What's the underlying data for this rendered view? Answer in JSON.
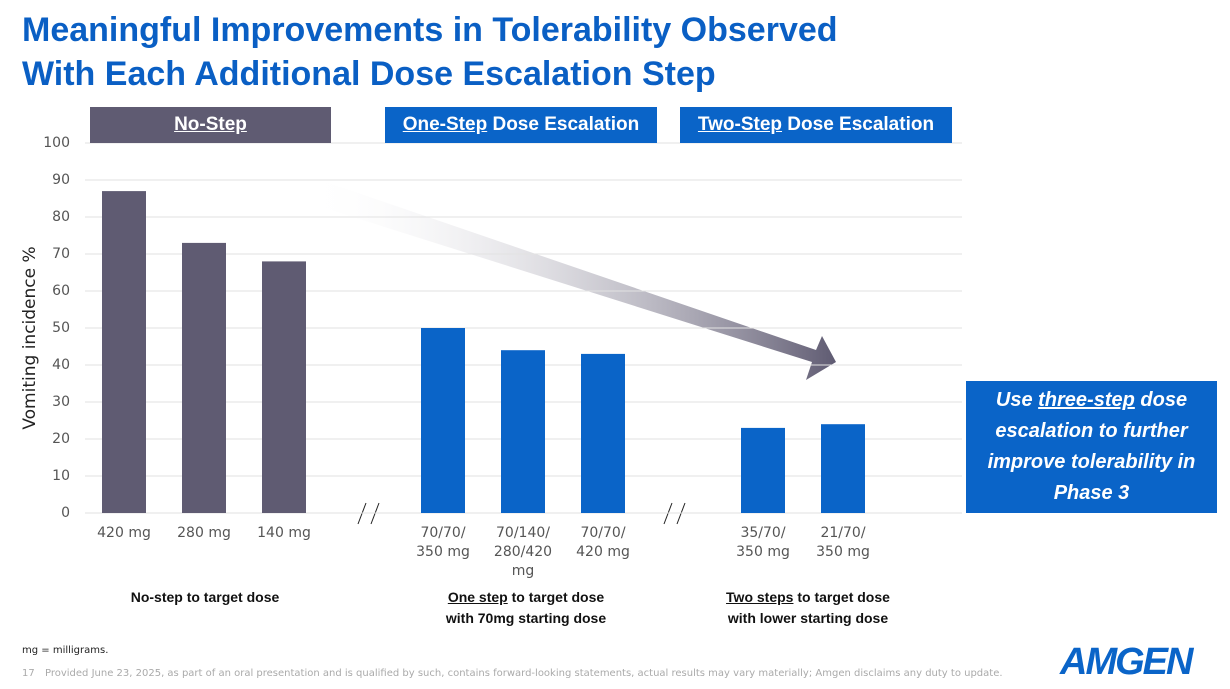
{
  "title": [
    "Meaningful Improvements in Tolerability Observed",
    "With Each Additional Dose Escalation Step"
  ],
  "chart_data": {
    "type": "bar",
    "y_label": "Vomiting incidence %",
    "ylim": [
      0,
      100
    ],
    "yticks": [
      0,
      10,
      20,
      30,
      40,
      50,
      60,
      70,
      80,
      90,
      100
    ],
    "grid": true,
    "groups": [
      {
        "header": [
          "No-Step"
        ],
        "label": [
          "No-step to target dose"
        ],
        "color": "#5f5b72",
        "categories": [
          "420 mg",
          "280 mg",
          "140 mg"
        ],
        "values": [
          87,
          73,
          68
        ]
      },
      {
        "header": [
          "One-Step",
          " Dose Escalation"
        ],
        "label": [
          "One step",
          " to target dose\nwith 70mg starting dose"
        ],
        "color": "#0a64c8",
        "categories": [
          "70/70/\n350 mg",
          "70/140/\n280/420\nmg",
          "70/70/\n420 mg"
        ],
        "values": [
          50,
          44,
          43
        ]
      },
      {
        "header": [
          "Two-Step",
          " Dose Escalation"
        ],
        "label": [
          "Two steps",
          " to target dose\nwith lower starting dose"
        ],
        "color": "#0a64c8",
        "categories": [
          "35/70/\n350 mg",
          "21/70/\n350 mg"
        ],
        "values": [
          23,
          24
        ]
      }
    ]
  },
  "callout": [
    "Use ",
    "three-step",
    " dose escalation to further improve tolerability in Phase 3"
  ],
  "footnote": "mg = milligrams.",
  "page_number": "17",
  "disclaimer": "Provided June 23, 2025, as part of an oral presentation and is qualified by such, contains forward-looking statements, actual results may vary materially; Amgen disclaims any duty to update.",
  "logo": "AMGEN"
}
